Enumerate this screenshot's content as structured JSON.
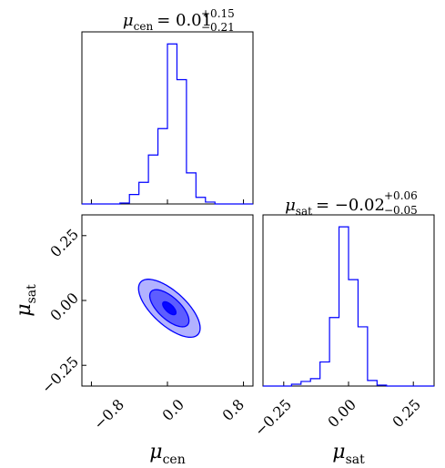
{
  "chart_data": {
    "type": "corner",
    "color": "#0000ff",
    "parameters": [
      {
        "symbol": "μ",
        "subscript": "cen",
        "title": {
          "prefix": "= 0.01",
          "plus": "+0.15",
          "minus": "−0.21"
        },
        "range": [
          -0.9,
          0.9
        ],
        "ticks": [
          -0.8,
          0.0,
          0.8
        ],
        "tick_labels": [
          "−0.8",
          "0.0",
          "0.8"
        ]
      },
      {
        "symbol": "μ",
        "subscript": "sat",
        "title": {
          "prefix": "= −0.02",
          "plus": "+0.06",
          "minus": "−0.05"
        },
        "range": [
          -0.33,
          0.33
        ],
        "ticks": [
          -0.25,
          0.0,
          0.25
        ],
        "tick_labels": [
          "−0.25",
          "0.00",
          "0.25"
        ]
      }
    ],
    "histograms": [
      {
        "parameter": "μ_cen",
        "bins": [
          -0.9,
          -0.8,
          -0.7,
          -0.6,
          -0.5,
          -0.4,
          -0.3,
          -0.2,
          -0.1,
          0.0,
          0.1,
          0.2,
          0.3,
          0.4,
          0.5,
          0.6,
          0.7,
          0.8,
          0.9
        ],
        "counts": [
          0,
          0,
          0,
          0,
          1,
          10,
          23,
          52,
          80,
          170,
          132,
          33,
          7,
          2,
          0,
          0,
          0,
          0
        ]
      },
      {
        "parameter": "μ_sat",
        "bins": [
          -0.33,
          -0.2933,
          -0.2567,
          -0.22,
          -0.1833,
          -0.1467,
          -0.11,
          -0.0733,
          -0.0367,
          0.0,
          0.0367,
          0.0733,
          0.11,
          0.1467,
          0.1833,
          0.22,
          0.2567,
          0.2933,
          0.33
        ],
        "counts": [
          0,
          0,
          0,
          2,
          5,
          8,
          26,
          74,
          172,
          115,
          64,
          6,
          1,
          0,
          0,
          0,
          0,
          0
        ]
      }
    ],
    "contours": {
      "x_parameter": "μ_cen",
      "y_parameter": "μ_sat",
      "center": [
        0.02,
        -0.03
      ],
      "levels": [
        {
          "cov": [
            [
              0.0049,
              -0.00116
            ],
            [
              -0.00116,
              0.000624
            ]
          ],
          "fill_opacity": 0.92
        },
        {
          "cov": [
            [
              0.0426,
              -0.0099
            ],
            [
              -0.0099,
              0.00512
            ]
          ],
          "fill_opacity": 0.48
        },
        {
          "cov": [
            [
              0.105,
              -0.0247
            ],
            [
              -0.0247,
              0.0125
            ]
          ],
          "fill_opacity": 0.3
        }
      ]
    }
  }
}
